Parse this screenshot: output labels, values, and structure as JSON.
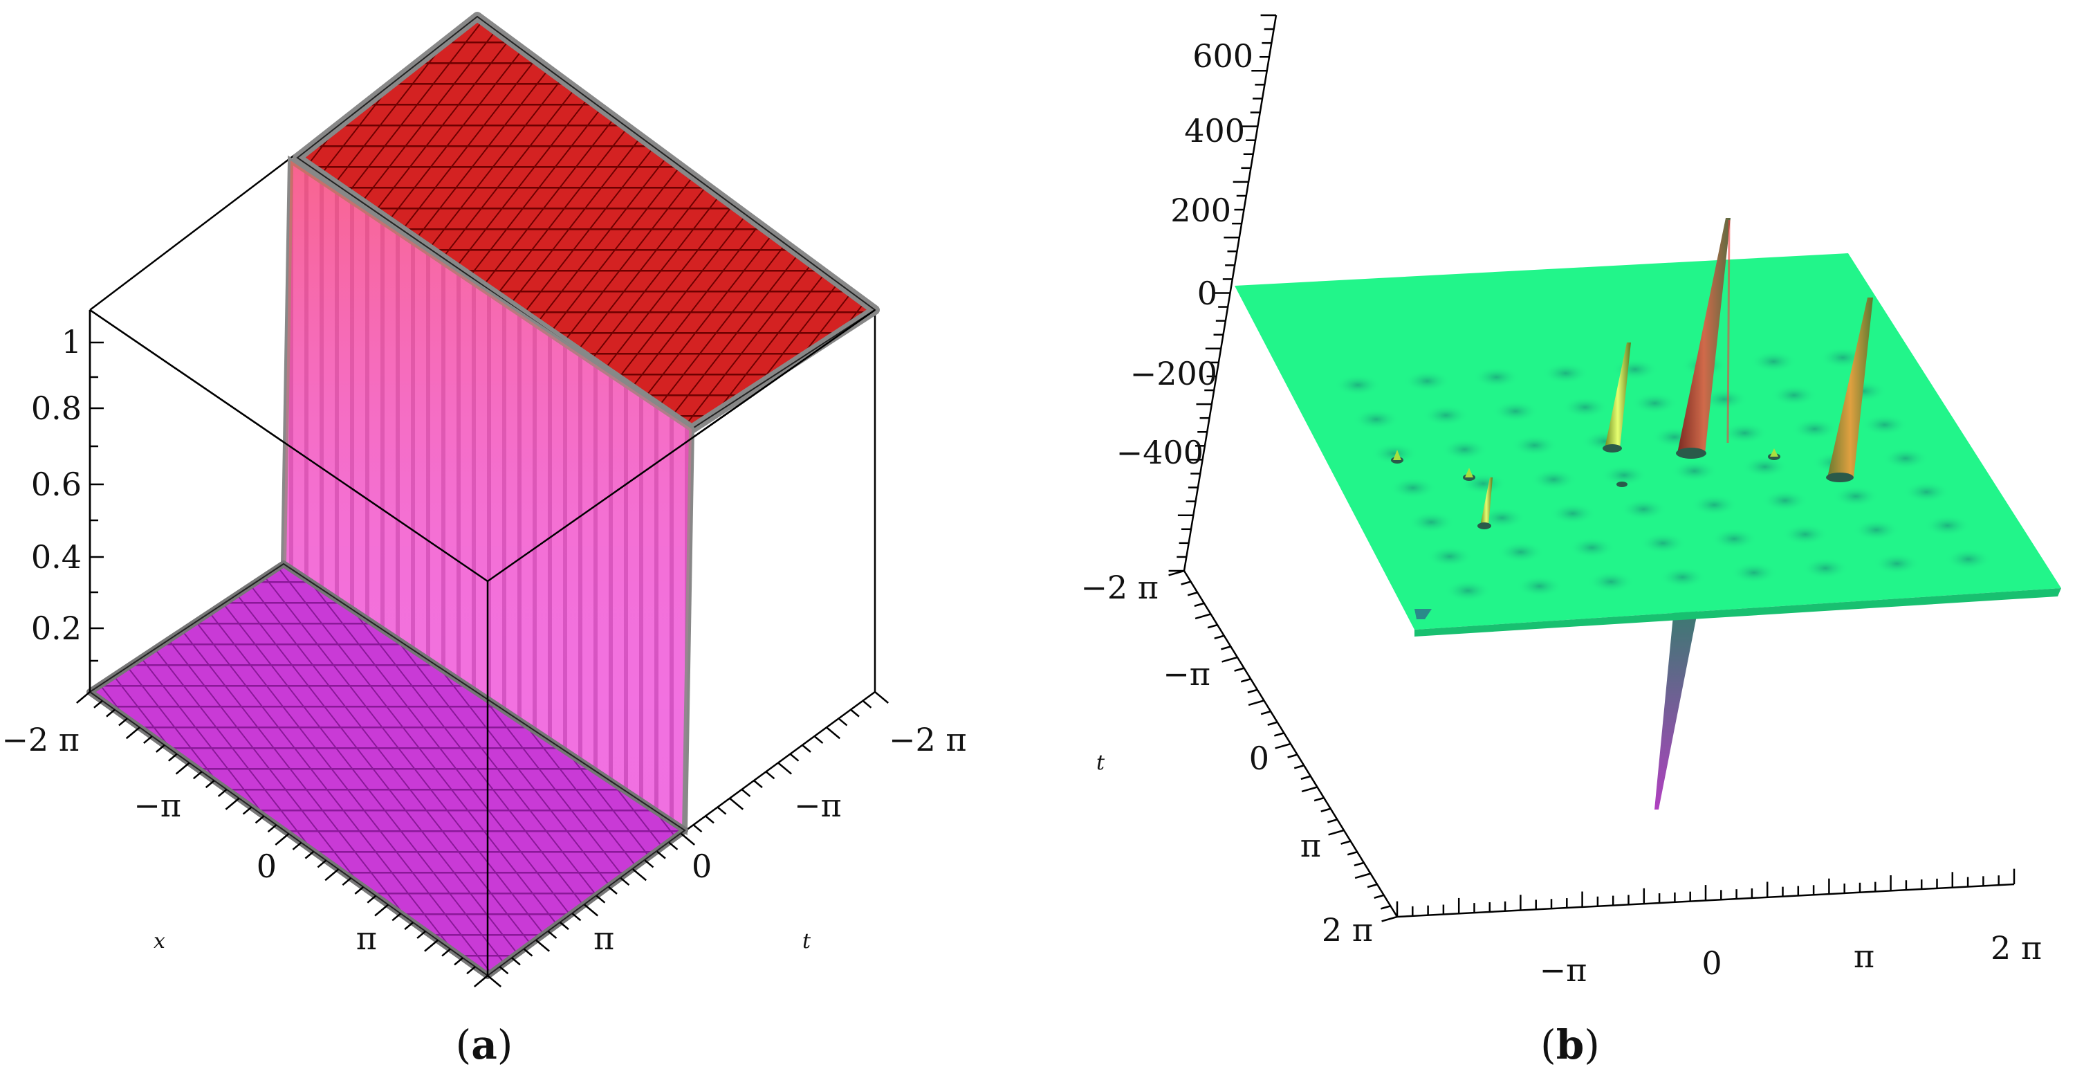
{
  "figure": {
    "panels": [
      {
        "id": "a",
        "caption_open": "(",
        "caption_letter": "a",
        "caption_close": ")"
      },
      {
        "id": "b",
        "caption_open": "(",
        "caption_letter": "b",
        "caption_close": ")"
      }
    ]
  },
  "chart_data": [
    {
      "type": "surface3d",
      "panel": "a",
      "title": "",
      "xlabel": "x",
      "ylabel": "t",
      "zlabel": "",
      "x_ticks": [
        "−2 π",
        "−π",
        "0",
        "π"
      ],
      "t_ticks": [
        "−2 π",
        "−π",
        "0",
        "π"
      ],
      "z_ticks": [
        "1",
        "0.8",
        "0.6",
        "0.4",
        "0.2"
      ],
      "xlim": [
        -6.283,
        6.283
      ],
      "tlim": [
        -6.283,
        6.283
      ],
      "zlim": [
        0,
        1.05
      ],
      "surface": "kink (step) solution: low plateau ≈ 0.02, sharp rise to high plateau ≈ 1.05",
      "low_plateau_z": 0.02,
      "high_plateau_z": 1.05,
      "colors": {
        "high": "#cc1a1a",
        "wall": "#ee66ee",
        "low": "#cc33dd",
        "grid": "#7a0000",
        "box": "#000000"
      }
    },
    {
      "type": "surface3d",
      "panel": "b",
      "title": "",
      "xlabel": "",
      "ylabel": "t",
      "zlabel": "",
      "x_ticks": [
        "−π",
        "0",
        "π",
        "2 π"
      ],
      "t_ticks": [
        "−2 π",
        "−π",
        "0",
        "π",
        "2 π"
      ],
      "z_ticks": [
        "600",
        "400",
        "200",
        "0",
        "−200",
        "−400"
      ],
      "xlim": [
        -6.283,
        6.283
      ],
      "tlim": [
        -6.283,
        6.283
      ],
      "zlim": [
        -400,
        600
      ],
      "surface": "flat plane ≈ 0 with localized periodic spikes (peaks) and one deep negative spike",
      "peaks_approx": [
        {
          "label": "tall center peak",
          "height": 180
        },
        {
          "label": "right peak",
          "height": 130
        },
        {
          "label": "left-center peak",
          "height": 80
        },
        {
          "label": "deep downward spike",
          "height": -450
        }
      ],
      "colors": {
        "plane": "#22f58a",
        "peak_green": "#b8f040",
        "peak_red": "#c0392b",
        "axis": "#000000"
      }
    }
  ]
}
